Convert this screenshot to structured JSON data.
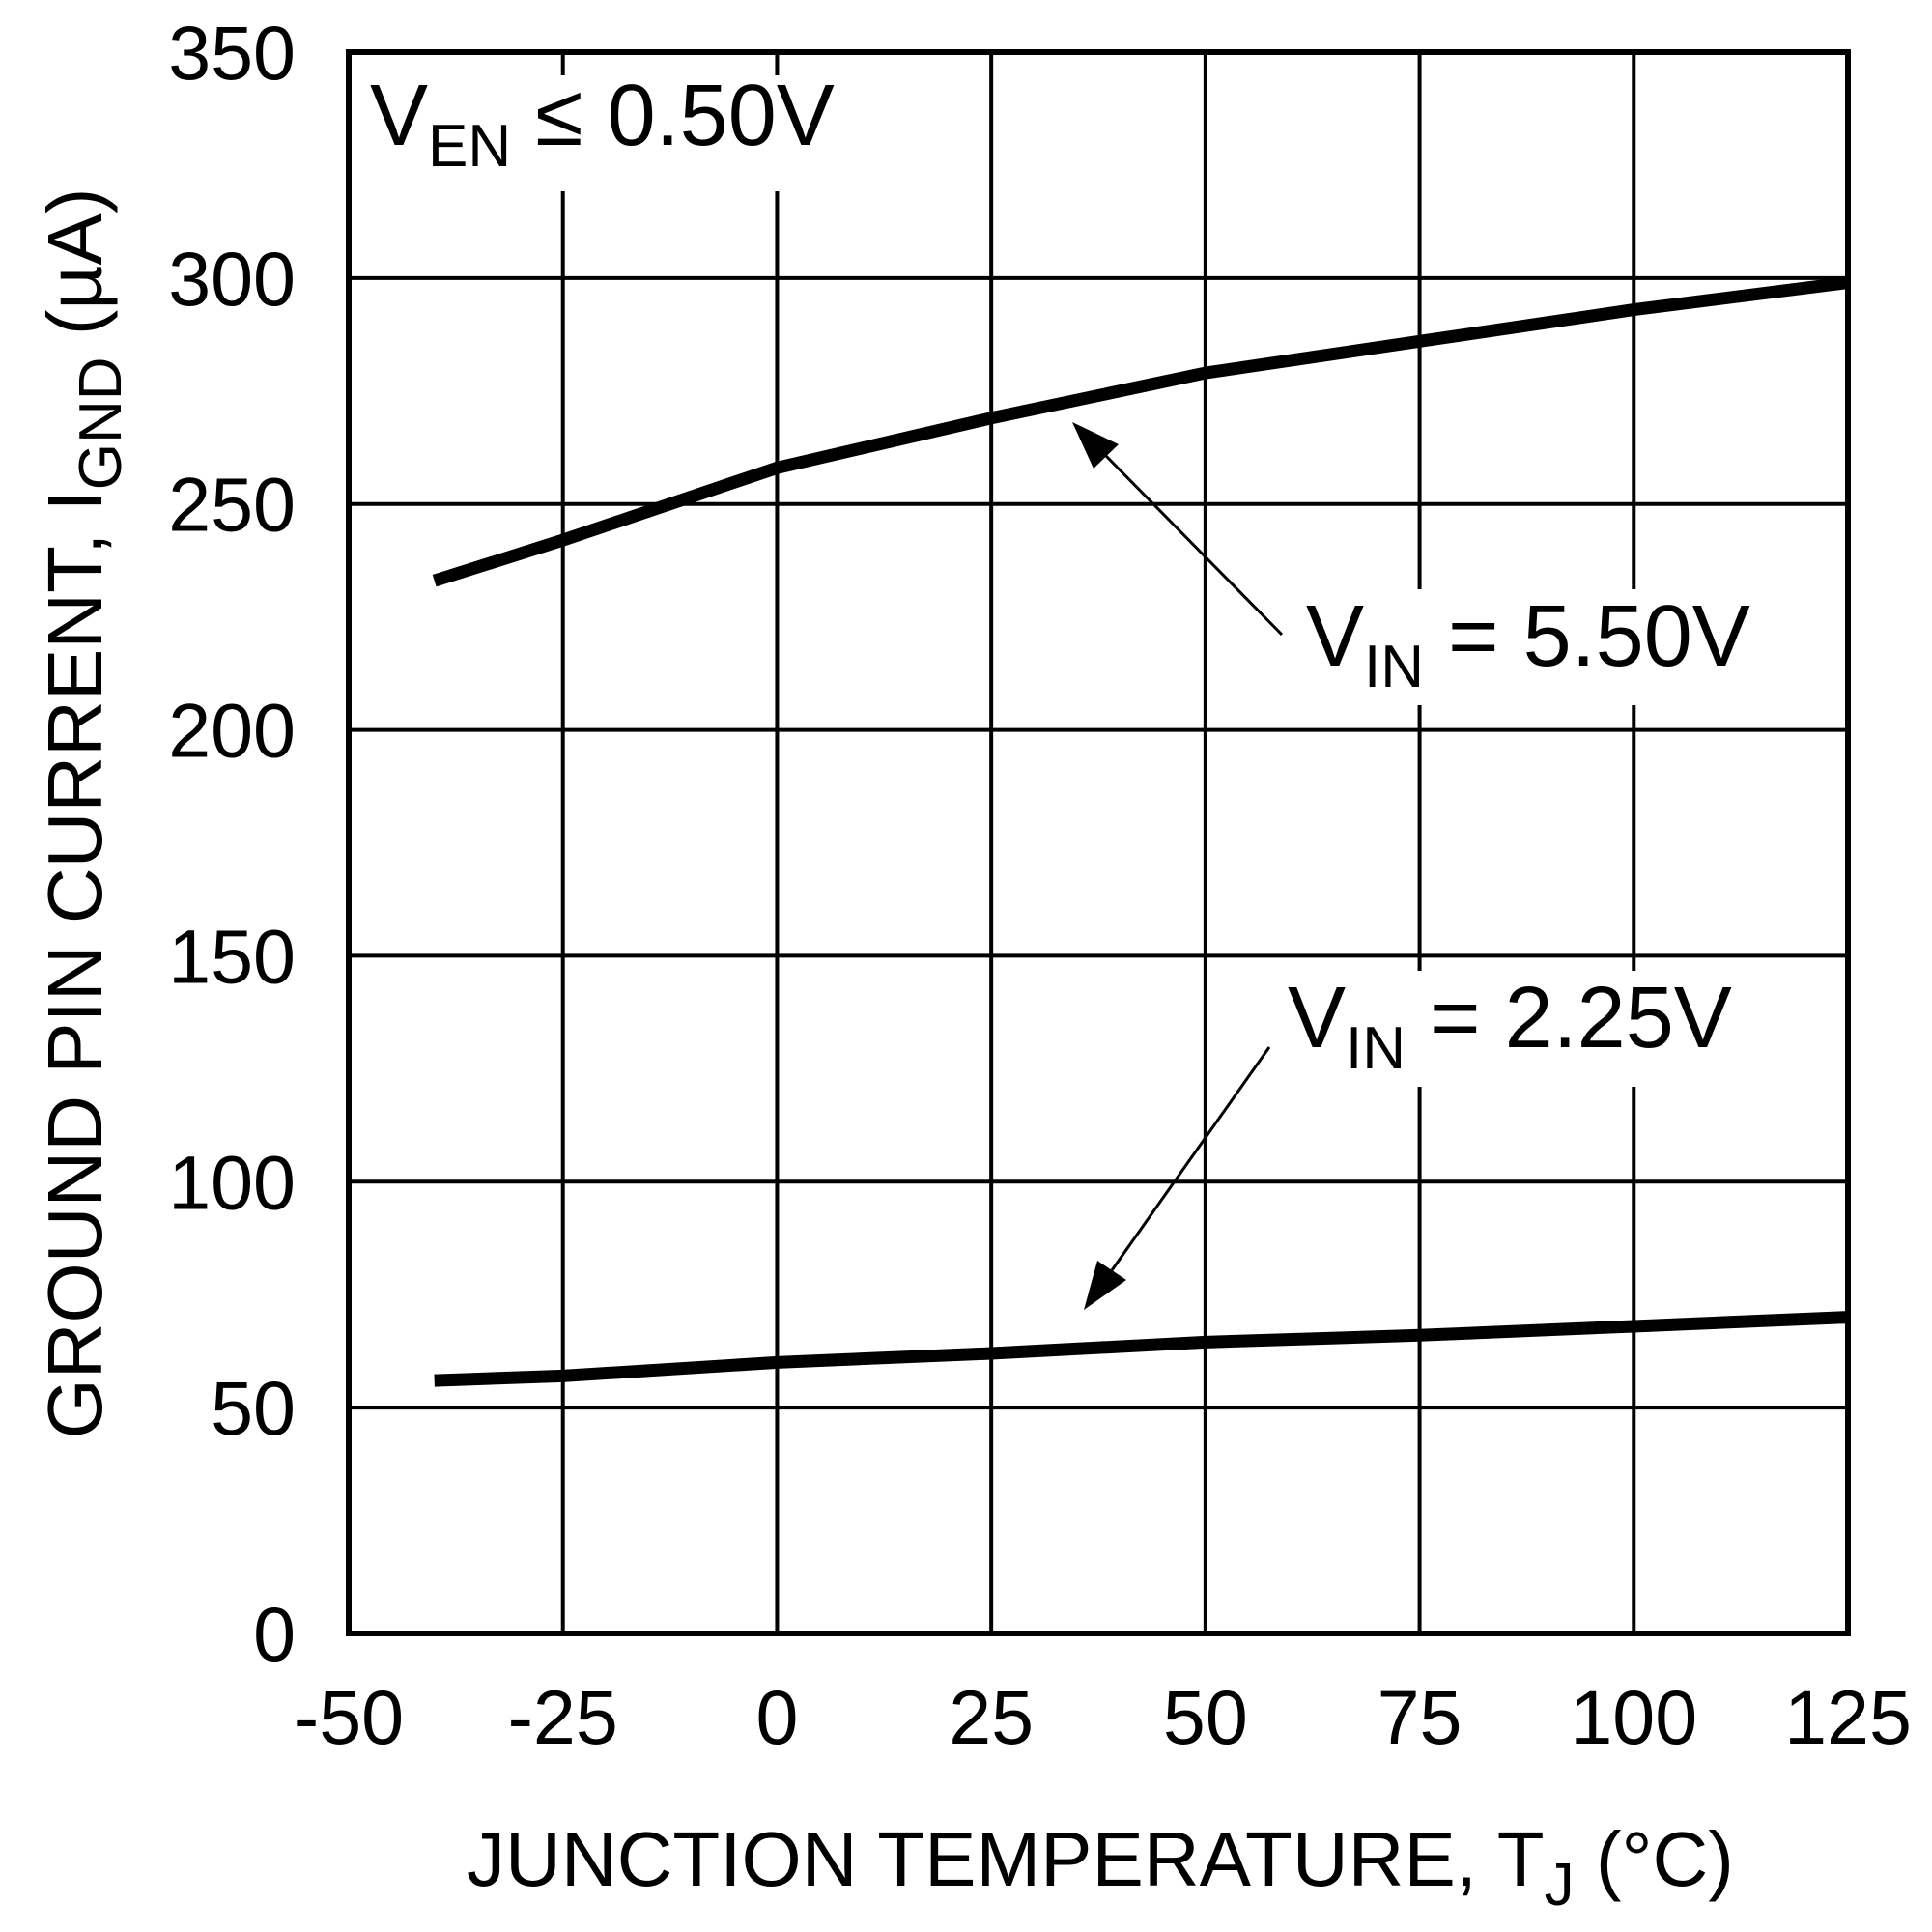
{
  "chart_data": {
    "type": "line",
    "xlabel": {
      "main": "JUNCTION TEMPERATURE, T",
      "sub": "J",
      "rest": " (°C)"
    },
    "ylabel": {
      "main": "GROUND PIN CURRENT, I",
      "sub": "GND",
      "rest": " (µA)"
    },
    "condition": {
      "main": "V",
      "sub": "EN",
      "rest": " ≤ 0.50V"
    },
    "x": [
      -40,
      -25,
      0,
      25,
      50,
      75,
      100,
      125
    ],
    "series": [
      {
        "name": {
          "main": "V",
          "sub": "IN",
          "rest": " = 5.50V"
        },
        "color": "#000000",
        "values": [
          233,
          242,
          258,
          269,
          279,
          286,
          293,
          299
        ]
      },
      {
        "name": {
          "main": "V",
          "sub": "IN",
          "rest": " = 2.25V"
        },
        "color": "#000000",
        "values": [
          56,
          57,
          60,
          62,
          64.5,
          66,
          68,
          70
        ]
      }
    ],
    "xlim": [
      -50,
      125
    ],
    "xticks": [
      -50,
      -25,
      0,
      25,
      50,
      75,
      100,
      125
    ],
    "ylim": [
      0,
      350
    ],
    "yticks": [
      0,
      50,
      100,
      150,
      200,
      250,
      300,
      350
    ],
    "grid": true
  }
}
